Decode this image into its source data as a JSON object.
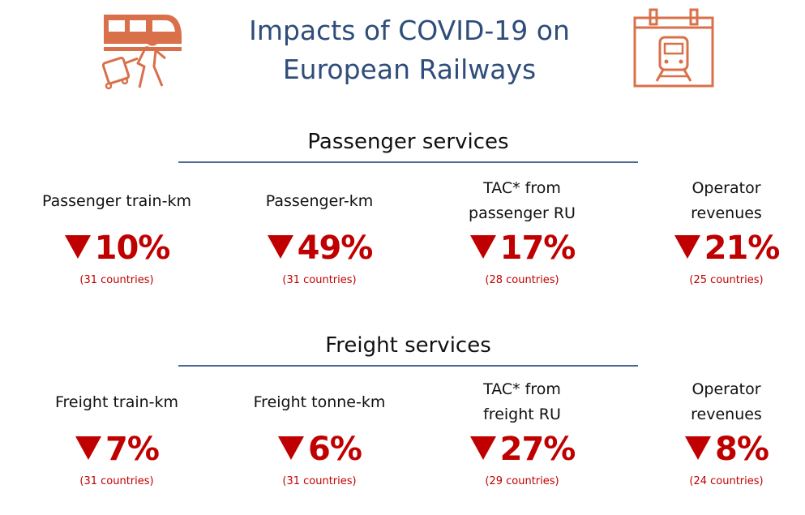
{
  "title": {
    "line1": "Impacts of COVID-19 on",
    "line2": "European Railways"
  },
  "colors": {
    "title": "#2f4d7a",
    "accent": "#c00000",
    "icon": "#d9704a",
    "rule": "#4a6a95"
  },
  "icons": {
    "left": "passenger-with-luggage-train-icon",
    "right": "calendar-train-icon"
  },
  "passenger": {
    "heading": "Passenger services",
    "metrics": [
      {
        "label_line1": "Passenger train-km",
        "label_line2": "",
        "value": "10%",
        "countries": "(31 countries)"
      },
      {
        "label_line1": "Passenger-km",
        "label_line2": "",
        "value": "49%",
        "countries": "(31 countries)"
      },
      {
        "label_line1": "TAC* from",
        "label_line2": "passenger RU",
        "value": "17%",
        "countries": "(28 countries)"
      },
      {
        "label_line1": "Operator",
        "label_line2": "revenues",
        "value": "21%",
        "countries": "(25 countries)"
      }
    ]
  },
  "freight": {
    "heading": "Freight services",
    "metrics": [
      {
        "label_line1": "Freight train-km",
        "label_line2": "",
        "value": "7%",
        "countries": "(31 countries)"
      },
      {
        "label_line1": "Freight tonne-km",
        "label_line2": "",
        "value": "6%",
        "countries": "(31 countries)"
      },
      {
        "label_line1": "TAC* from",
        "label_line2": "freight RU",
        "value": "27%",
        "countries": "(29 countries)"
      },
      {
        "label_line1": "Operator",
        "label_line2": "revenues",
        "value": "8%",
        "countries": "(24 countries)"
      }
    ]
  }
}
